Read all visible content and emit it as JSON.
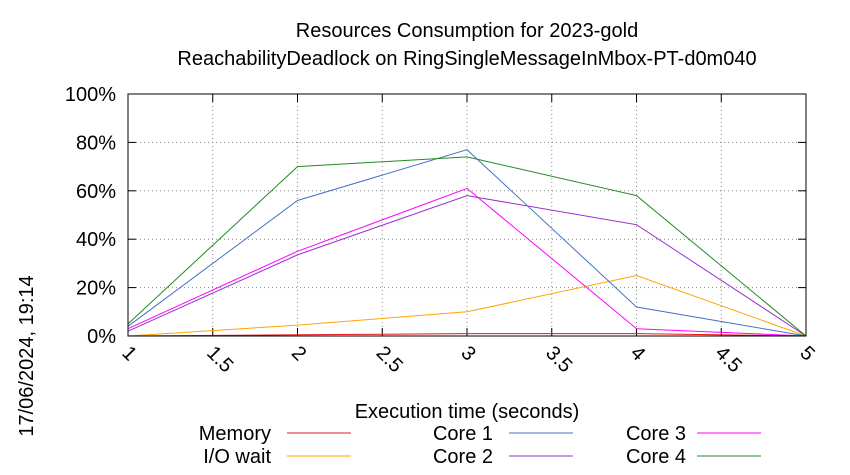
{
  "chart_data": {
    "type": "line",
    "title": "Resources Consumption for 2023-gold",
    "subtitle": "ReachabilityDeadlock on RingSingleMessageInMbox-PT-d0m040",
    "xlabel": "Execution time (seconds)",
    "ylabel": "",
    "timestamp": "17/06/2024, 19:14",
    "xlim": [
      1,
      5
    ],
    "ylim": [
      0,
      100
    ],
    "x_ticks": [
      "1",
      "1.5",
      "2",
      "2.5",
      "3",
      "3.5",
      "4",
      "4.5",
      "5"
    ],
    "y_ticks": [
      "0%",
      "20%",
      "40%",
      "60%",
      "80%",
      "100%"
    ],
    "grid": true,
    "legend_position": "bottom",
    "x": [
      1,
      2,
      3,
      4,
      5
    ],
    "series": [
      {
        "name": "Memory",
        "color": "#e41a1c",
        "values": [
          0,
          0.5,
          1,
          1,
          0
        ]
      },
      {
        "name": "I/O wait",
        "color": "#ffa500",
        "values": [
          0,
          4.5,
          10,
          25,
          0
        ]
      },
      {
        "name": "Core 1",
        "color": "#4472c4",
        "values": [
          4,
          56,
          77,
          12,
          0
        ]
      },
      {
        "name": "Core 2",
        "color": "#9932cc",
        "values": [
          2,
          33.5,
          58,
          46,
          0
        ]
      },
      {
        "name": "Core 3",
        "color": "#ff00ff",
        "values": [
          3,
          35,
          61,
          3,
          0
        ]
      },
      {
        "name": "Core 4",
        "color": "#228b22",
        "values": [
          5,
          70,
          74,
          58,
          0
        ]
      }
    ]
  }
}
